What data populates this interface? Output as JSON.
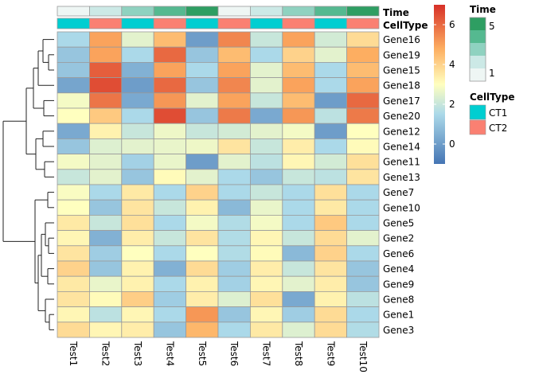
{
  "chart_data": {
    "type": "heatmap",
    "columns": [
      "Test1",
      "Test2",
      "Test3",
      "Test4",
      "Test5",
      "Test6",
      "Test7",
      "Test8",
      "Test9",
      "Test10"
    ],
    "rows": [
      "Gene16",
      "Gene19",
      "Gene15",
      "Gene18",
      "Gene17",
      "Gene20",
      "Gene12",
      "Gene14",
      "Gene11",
      "Gene13",
      "Gene7",
      "Gene10",
      "Gene5",
      "Gene2",
      "Gene6",
      "Gene4",
      "Gene9",
      "Gene8",
      "Gene1",
      "Gene3"
    ],
    "values": [
      [
        1.5,
        5.0,
        2.5,
        4.5,
        0.0,
        5.5,
        2.0,
        5.0,
        2.2,
        3.8
      ],
      [
        1.0,
        5.0,
        1.5,
        6.0,
        1.0,
        4.5,
        1.5,
        4.0,
        2.5,
        4.8
      ],
      [
        1.0,
        6.2,
        0.5,
        5.0,
        1.5,
        5.0,
        2.5,
        4.5,
        1.5,
        4.5
      ],
      [
        0.2,
        6.5,
        0.0,
        6.0,
        1.0,
        5.5,
        2.5,
        5.0,
        1.5,
        5.0
      ],
      [
        2.8,
        5.8,
        0.3,
        5.2,
        2.5,
        5.0,
        2.0,
        4.5,
        0.0,
        6.0
      ],
      [
        3.0,
        4.2,
        1.5,
        6.5,
        1.0,
        5.7,
        0.3,
        5.2,
        1.8,
        5.7
      ],
      [
        0.3,
        3.3,
        2.0,
        2.7,
        2.0,
        2.2,
        2.5,
        2.8,
        0.0,
        3.0
      ],
      [
        1.0,
        2.4,
        2.5,
        2.6,
        2.7,
        3.6,
        2.0,
        3.4,
        1.5,
        3.1
      ],
      [
        2.8,
        2.5,
        1.3,
        2.6,
        0.0,
        2.5,
        1.8,
        3.2,
        2.2,
        3.7
      ],
      [
        2.0,
        2.5,
        1.0,
        3.1,
        2.5,
        1.5,
        1.0,
        2.0,
        1.8,
        3.6
      ],
      [
        2.9,
        1.5,
        3.5,
        1.5,
        4.0,
        1.5,
        2.0,
        1.5,
        3.7,
        1.5
      ],
      [
        3.0,
        1.0,
        3.6,
        2.0,
        3.3,
        0.7,
        2.6,
        1.5,
        3.5,
        1.5
      ],
      [
        3.5,
        2.0,
        3.7,
        1.5,
        2.8,
        1.6,
        2.8,
        1.5,
        4.2,
        1.5
      ],
      [
        3.2,
        0.5,
        3.4,
        2.0,
        3.6,
        1.6,
        3.2,
        2.0,
        3.8,
        2.5
      ],
      [
        3.6,
        1.2,
        3.0,
        1.5,
        3.0,
        1.6,
        3.1,
        0.7,
        4.0,
        1.5
      ],
      [
        4.0,
        1.0,
        3.3,
        0.5,
        3.8,
        1.2,
        3.4,
        2.0,
        3.6,
        1.0
      ],
      [
        3.5,
        2.6,
        3.3,
        1.5,
        3.3,
        1.3,
        3.2,
        2.5,
        3.4,
        1.0
      ],
      [
        3.6,
        3.1,
        4.1,
        1.2,
        3.4,
        2.4,
        3.7,
        0.3,
        3.3,
        1.8
      ],
      [
        3.2,
        1.8,
        3.2,
        1.5,
        5.2,
        1.0,
        3.2,
        1.2,
        3.8,
        1.5
      ],
      [
        3.8,
        3.2,
        3.4,
        1.0,
        4.6,
        1.5,
        3.5,
        2.4,
        3.8,
        1.6
      ]
    ],
    "color_scale": {
      "ticks": [
        0,
        2,
        4,
        6
      ],
      "range": [
        -1,
        7
      ],
      "stops": [
        {
          "value": -1,
          "color": "#4575b4"
        },
        {
          "value": 1.5,
          "color": "#abd9e9"
        },
        {
          "value": 3,
          "color": "#ffffbf"
        },
        {
          "value": 4.8,
          "color": "#fdae61"
        },
        {
          "value": 7,
          "color": "#d73027"
        }
      ]
    },
    "annotations": {
      "time": {
        "label": "Time",
        "values": [
          1,
          2,
          3,
          4,
          5,
          1,
          2,
          3,
          4,
          5
        ],
        "legend_ticks": [
          "5",
          "1"
        ],
        "colors": [
          "#eef6f4",
          "#cce9e6",
          "#8fd2c0",
          "#55b990",
          "#2e9e62"
        ]
      },
      "celltype": {
        "label": "CellType",
        "values": [
          "CT1",
          "CT2",
          "CT1",
          "CT2",
          "CT1",
          "CT2",
          "CT1",
          "CT2",
          "CT1",
          "CT2"
        ],
        "levels": [
          "CT1",
          "CT2"
        ],
        "colors": {
          "CT1": "#00ced1",
          "CT2": "#fa8072"
        }
      }
    },
    "legend_time_title": "Time",
    "legend_celltype_title": "CellType",
    "dendrogram": "row hierarchical clustering (rows ordered by cluster)"
  }
}
